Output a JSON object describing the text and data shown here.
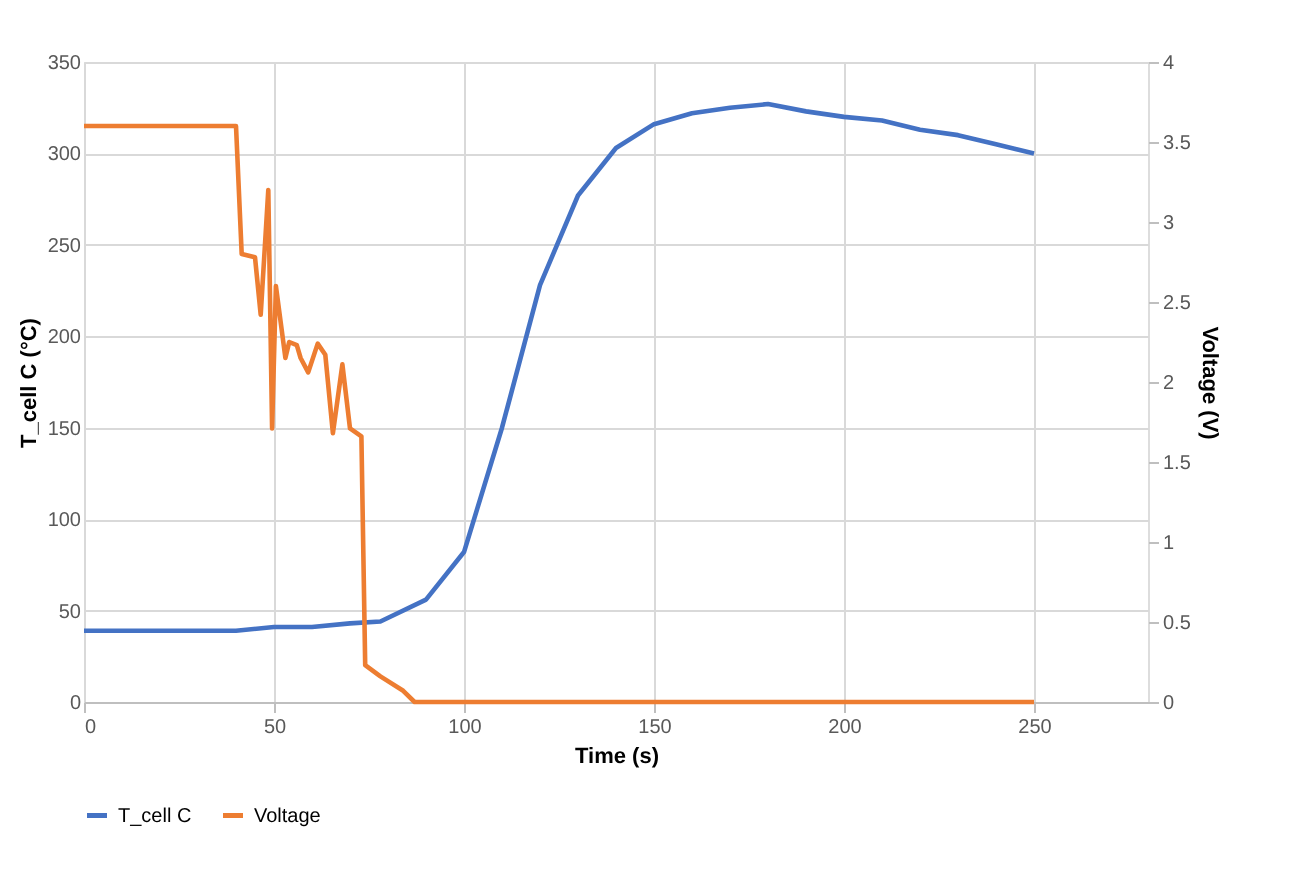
{
  "chart_data": {
    "type": "line",
    "xlabel": "Time (s)",
    "ylabel": "T_cell C (°C)",
    "y2label": "Voltage (V)",
    "xlim": [
      0,
      280
    ],
    "xticks": [
      0,
      50,
      100,
      150,
      200,
      250
    ],
    "ylim": [
      0,
      350
    ],
    "yticks": [
      0,
      50,
      100,
      150,
      200,
      250,
      300,
      350
    ],
    "y2lim": [
      0,
      4
    ],
    "y2ticks": [
      0,
      0.5,
      1,
      1.5,
      2,
      2.5,
      3,
      3.5,
      4
    ],
    "grid": true,
    "legend": "bottom",
    "line_style": "solid",
    "marker": "none",
    "series": [
      {
        "name": "T_cell C",
        "color": "#4472c4",
        "x": [
          0,
          40,
          50,
          60,
          70,
          78,
          90,
          100,
          110,
          120,
          130,
          140,
          150,
          160,
          170,
          180,
          190,
          200,
          210,
          220,
          230,
          240,
          250
        ],
        "values": [
          39,
          39,
          41,
          41,
          43,
          44,
          56,
          82,
          150,
          228,
          277,
          303,
          316,
          322,
          325,
          327,
          323,
          320,
          318,
          313,
          310,
          305,
          300
        ]
      },
      {
        "name": "Voltage",
        "color": "#ed7d31",
        "axis": "y2",
        "x": [
          0,
          40,
          41.5,
          45,
          46.5,
          48.5,
          49.5,
          50.5,
          53,
          54,
          56,
          57,
          59,
          61.5,
          63.5,
          65.5,
          68,
          70,
          73,
          74,
          78,
          84,
          87,
          250
        ],
        "values": [
          3.6,
          3.6,
          2.8,
          2.78,
          2.42,
          3.2,
          1.71,
          2.6,
          2.15,
          2.25,
          2.23,
          2.15,
          2.06,
          2.24,
          2.17,
          1.68,
          2.11,
          1.71,
          1.66,
          0.23,
          0.16,
          0.07,
          0,
          0
        ]
      }
    ]
  }
}
